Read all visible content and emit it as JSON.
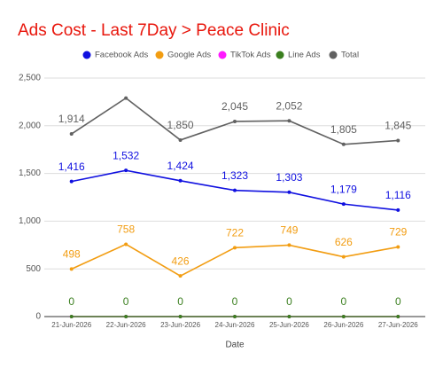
{
  "chart_data": {
    "type": "line",
    "title": "Ads Cost - Last 7Day > Peace Clinic",
    "x_label": "Date",
    "categories": [
      "21-Jun-2026",
      "22-Jun-2026",
      "23-Jun-2026",
      "24-Jun-2026",
      "25-Jun-2026",
      "26-Jun-2026",
      "27-Jun-2026"
    ],
    "series": [
      {
        "name": "Facebook Ads",
        "color": "#1010e0",
        "values": [
          1416,
          1532,
          1424,
          1323,
          1303,
          1179,
          1116
        ],
        "value_labels": [
          "1,416",
          "1,532",
          "1,424",
          "1,323",
          "1,303",
          "1,179",
          "1,116"
        ],
        "labels": true
      },
      {
        "name": "Google Ads",
        "color": "#f29d12",
        "values": [
          498,
          758,
          426,
          722,
          749,
          626,
          729
        ],
        "labels": true
      },
      {
        "name": "TikTok Ads",
        "color": "#ff19ff",
        "values": [
          0,
          0,
          0,
          0,
          0,
          0,
          0
        ],
        "labels": false
      },
      {
        "name": "Line Ads",
        "color": "#3b7f1f",
        "values": [
          0,
          0,
          0,
          0,
          0,
          0,
          0
        ],
        "labels": true
      },
      {
        "name": "Total",
        "color": "#616161",
        "values": [
          1914,
          2290,
          1850,
          2045,
          2052,
          1805,
          1845
        ],
        "value_labels": [
          "1,914",
          null,
          "1,850",
          "2,045",
          "2,052",
          "1,805",
          "1,845"
        ],
        "labels": true
      }
    ],
    "ylim": [
      0,
      2500
    ],
    "yticks": [
      0,
      500,
      {
        "value": 1000,
        "label": "1,000"
      },
      {
        "value": 1500,
        "label": "1,500"
      },
      {
        "value": 2000,
        "label": "2,000"
      },
      {
        "value": 2500,
        "label": "2,500"
      }
    ],
    "grid": true
  }
}
